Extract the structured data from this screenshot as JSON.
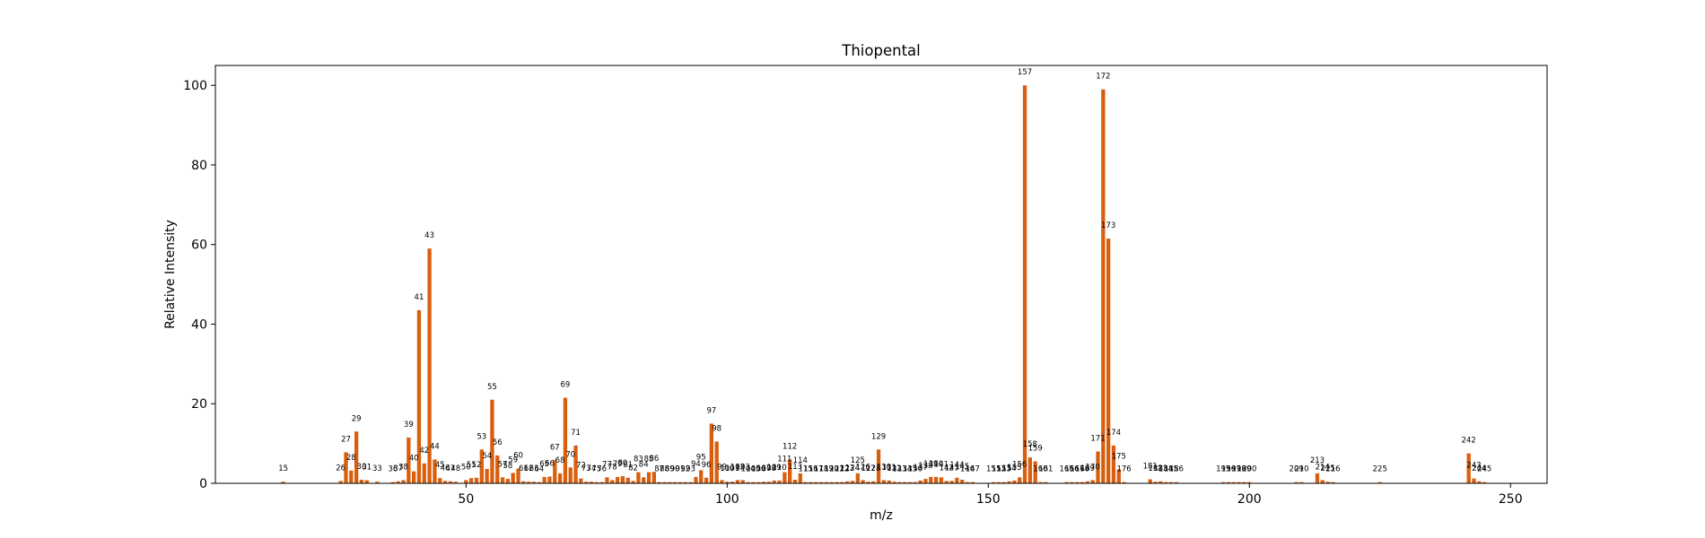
{
  "colors": {
    "bar": "#d95f0e",
    "axis": "#000000",
    "background": "#ffffff"
  },
  "chart_data": {
    "type": "bar",
    "title": "Thiopental",
    "xlabel": "m/z",
    "ylabel": "Relative Intensity",
    "xlim": [
      2,
      257
    ],
    "ylim": [
      0,
      105
    ],
    "xticks": [
      50,
      100,
      150,
      200,
      250
    ],
    "yticks": [
      0,
      20,
      40,
      60,
      80,
      100
    ],
    "grid": false,
    "points": [
      [
        15,
        0.4
      ],
      [
        26,
        0.6
      ],
      [
        27,
        7.8
      ],
      [
        28,
        3.2
      ],
      [
        29,
        13.0
      ],
      [
        30,
        0.9
      ],
      [
        31,
        0.8
      ],
      [
        33,
        0.4
      ],
      [
        36,
        0.3
      ],
      [
        37,
        0.5
      ],
      [
        38,
        0.8
      ],
      [
        39,
        11.5
      ],
      [
        40,
        3.0
      ],
      [
        41,
        43.5
      ],
      [
        42,
        5.0
      ],
      [
        43,
        59.0
      ],
      [
        44,
        6.0
      ],
      [
        45,
        1.3
      ],
      [
        46,
        0.6
      ],
      [
        47,
        0.5
      ],
      [
        48,
        0.4
      ],
      [
        50,
        0.8
      ],
      [
        51,
        1.3
      ],
      [
        52,
        1.4
      ],
      [
        53,
        8.5
      ],
      [
        54,
        3.6
      ],
      [
        55,
        21.0
      ],
      [
        56,
        7.0
      ],
      [
        57,
        1.5
      ],
      [
        58,
        1.1
      ],
      [
        59,
        2.6
      ],
      [
        60,
        3.7
      ],
      [
        61,
        0.5
      ],
      [
        62,
        0.4
      ],
      [
        63,
        0.4
      ],
      [
        64,
        0.3
      ],
      [
        65,
        1.6
      ],
      [
        66,
        1.7
      ],
      [
        67,
        5.8
      ],
      [
        68,
        2.5
      ],
      [
        69,
        21.5
      ],
      [
        70,
        4.0
      ],
      [
        71,
        9.5
      ],
      [
        72,
        1.2
      ],
      [
        73,
        0.4
      ],
      [
        74,
        0.4
      ],
      [
        75,
        0.3
      ],
      [
        76,
        0.3
      ],
      [
        77,
        1.5
      ],
      [
        78,
        0.8
      ],
      [
        79,
        1.6
      ],
      [
        80,
        1.8
      ],
      [
        81,
        1.4
      ],
      [
        82,
        0.6
      ],
      [
        83,
        2.8
      ],
      [
        84,
        1.5
      ],
      [
        85,
        2.8
      ],
      [
        86,
        2.9
      ],
      [
        87,
        0.3
      ],
      [
        88,
        0.3
      ],
      [
        89,
        0.3
      ],
      [
        90,
        0.3
      ],
      [
        91,
        0.3
      ],
      [
        92,
        0.3
      ],
      [
        93,
        0.3
      ],
      [
        94,
        1.6
      ],
      [
        95,
        3.3
      ],
      [
        96,
        1.4
      ],
      [
        97,
        15.0
      ],
      [
        98,
        10.5
      ],
      [
        99,
        0.8
      ],
      [
        100,
        0.4
      ],
      [
        101,
        0.4
      ],
      [
        102,
        0.8
      ],
      [
        103,
        0.8
      ],
      [
        104,
        0.3
      ],
      [
        105,
        0.3
      ],
      [
        106,
        0.3
      ],
      [
        107,
        0.4
      ],
      [
        108,
        0.4
      ],
      [
        109,
        0.7
      ],
      [
        110,
        0.7
      ],
      [
        111,
        2.8
      ],
      [
        112,
        6.0
      ],
      [
        113,
        0.9
      ],
      [
        114,
        2.5
      ],
      [
        115,
        0.3
      ],
      [
        116,
        0.3
      ],
      [
        117,
        0.3
      ],
      [
        118,
        0.3
      ],
      [
        119,
        0.3
      ],
      [
        120,
        0.3
      ],
      [
        121,
        0.3
      ],
      [
        122,
        0.3
      ],
      [
        123,
        0.5
      ],
      [
        124,
        0.6
      ],
      [
        125,
        2.5
      ],
      [
        126,
        0.8
      ],
      [
        127,
        0.4
      ],
      [
        128,
        0.5
      ],
      [
        129,
        8.5
      ],
      [
        130,
        0.8
      ],
      [
        131,
        0.7
      ],
      [
        132,
        0.4
      ],
      [
        133,
        0.3
      ],
      [
        134,
        0.3
      ],
      [
        135,
        0.3
      ],
      [
        136,
        0.3
      ],
      [
        137,
        0.7
      ],
      [
        138,
        1.1
      ],
      [
        139,
        1.6
      ],
      [
        140,
        1.6
      ],
      [
        141,
        1.5
      ],
      [
        142,
        0.6
      ],
      [
        143,
        0.6
      ],
      [
        144,
        1.4
      ],
      [
        145,
        0.9
      ],
      [
        146,
        0.3
      ],
      [
        147,
        0.3
      ],
      [
        151,
        0.3
      ],
      [
        152,
        0.3
      ],
      [
        153,
        0.3
      ],
      [
        154,
        0.5
      ],
      [
        155,
        0.7
      ],
      [
        156,
        1.5
      ],
      [
        157,
        100.0
      ],
      [
        158,
        6.5
      ],
      [
        159,
        5.5
      ],
      [
        160,
        0.3
      ],
      [
        161,
        0.3
      ],
      [
        165,
        0.3
      ],
      [
        166,
        0.3
      ],
      [
        167,
        0.3
      ],
      [
        168,
        0.3
      ],
      [
        169,
        0.5
      ],
      [
        170,
        0.8
      ],
      [
        171,
        8.0
      ],
      [
        172,
        99.0
      ],
      [
        173,
        61.5
      ],
      [
        174,
        9.5
      ],
      [
        175,
        3.5
      ],
      [
        176,
        0.3
      ],
      [
        181,
        1.0
      ],
      [
        182,
        0.4
      ],
      [
        183,
        0.5
      ],
      [
        184,
        0.3
      ],
      [
        185,
        0.3
      ],
      [
        186,
        0.3
      ],
      [
        195,
        0.3
      ],
      [
        196,
        0.3
      ],
      [
        197,
        0.3
      ],
      [
        198,
        0.3
      ],
      [
        199,
        0.3
      ],
      [
        200,
        0.3
      ],
      [
        209,
        0.3
      ],
      [
        210,
        0.3
      ],
      [
        213,
        2.5
      ],
      [
        214,
        0.8
      ],
      [
        215,
        0.4
      ],
      [
        216,
        0.3
      ],
      [
        225,
        0.3
      ],
      [
        242,
        7.5
      ],
      [
        243,
        1.2
      ],
      [
        244,
        0.5
      ],
      [
        245,
        0.3
      ]
    ]
  }
}
